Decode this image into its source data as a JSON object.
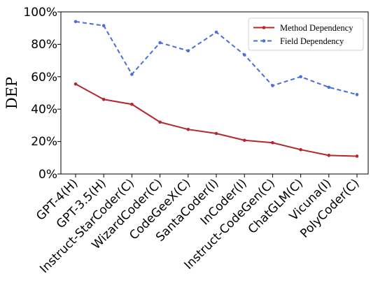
{
  "chart_data": {
    "type": "line",
    "title": "",
    "xlabel": "",
    "ylabel": "DEP",
    "categories": [
      "GPT-4(H)",
      "GPT-3.5(H)",
      "Instruct-StarCoder(C)",
      "WizardCoder(C)",
      "CodeGeeX(C)",
      "SantaCoder(I)",
      "InCoder(I)",
      "Instruct-CodeGen(C)",
      "ChatGLM(C)",
      "Vicuna(I)",
      "PolyCoder(C)"
    ],
    "ylim": [
      0,
      100
    ],
    "yticks": [
      "0%",
      "20%",
      "40%",
      "60%",
      "80%",
      "100%"
    ],
    "grid": false,
    "legend_position": "top-right",
    "series": [
      {
        "name": "Method Dependency",
        "color": "#b5272d",
        "style": "solid",
        "values": [
          55.5,
          46,
          43,
          32,
          27.5,
          25,
          20.8,
          19.3,
          15,
          11.5,
          11
        ]
      },
      {
        "name": "Field Dependency",
        "color": "#4a6fd8",
        "style": "dashed",
        "values": [
          94,
          91.5,
          61.5,
          81,
          76,
          87.5,
          73.5,
          54.5,
          60,
          53.5,
          49
        ]
      }
    ]
  }
}
